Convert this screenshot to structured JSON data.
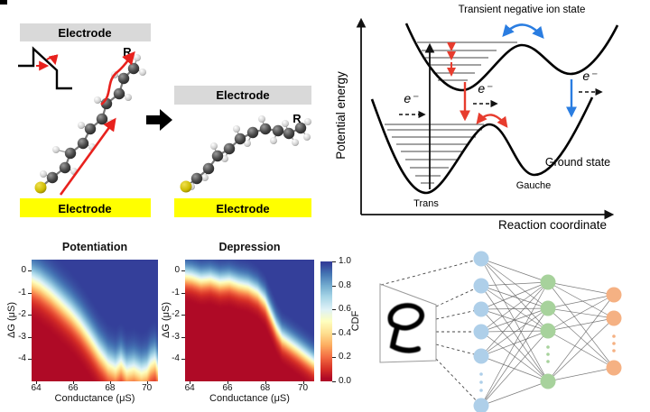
{
  "molecular_panel": {
    "electrode_top_left": "Electrode",
    "electrode_bottom_left": "Electrode",
    "electrode_top_right": "Electrode",
    "electrode_bottom_right": "Electrode",
    "r_label_left": "R",
    "r_label_right": "R",
    "colors": {
      "electrode_gray": "#d9d9d9",
      "electrode_yellow": "#ffff00",
      "arrow_red": "#e8211d",
      "sulfur_yellow": "#cdbb00"
    }
  },
  "energy_panel": {
    "title": "Transient negative ion state",
    "ylabel": "Potential energy",
    "xlabel": "Reaction coordinate",
    "trans": "Trans",
    "gauche": "Gauche",
    "ground_state": "Ground state",
    "electron": "e⁻",
    "colors": {
      "excitation_red": "#e73c2e",
      "relaxation_blue": "#2a7de1"
    }
  },
  "chart_data": [
    {
      "type": "heatmap",
      "title": "Potentiation",
      "xlabel": "Conductance (μS)",
      "ylabel": "ΔG (μS)",
      "xticks": [
        64,
        66,
        68,
        70
      ],
      "yticks": [
        0,
        -1,
        -2,
        -3,
        -4
      ],
      "xlim": [
        63.75,
        70.6
      ],
      "ylim": [
        -5.0,
        0.49
      ],
      "value_name": "CDF",
      "cdf_boundary": {
        "conductance": [
          63.75,
          64.2,
          64.8,
          65.3,
          65.9,
          66.4,
          66.9,
          67.4,
          67.9,
          68.3,
          68.6,
          68.9,
          69.3,
          69.7,
          70.0,
          70.2,
          70.45,
          70.6
        ],
        "delta_g": [
          -0.45,
          -0.65,
          -1.05,
          -1.45,
          -1.95,
          -2.45,
          -3.05,
          -3.7,
          -4.25,
          -4.45,
          -4.2,
          -4.55,
          -4.45,
          -4.65,
          -4.55,
          -4.25,
          -4.1,
          -4.5
        ]
      },
      "transition_width": 0.45
    },
    {
      "type": "heatmap",
      "title": "Depression",
      "xlabel": "Conductance (μS)",
      "ylabel": "ΔG (μS)",
      "xticks": [
        64,
        66,
        68,
        70
      ],
      "yticks": [
        0,
        -1,
        -2,
        -3,
        -4
      ],
      "xlim": [
        63.75,
        70.6
      ],
      "ylim": [
        -5.0,
        0.49
      ],
      "value_name": "CDF",
      "cdf_boundary": {
        "conductance": [
          63.75,
          64.1,
          64.6,
          65.1,
          65.6,
          66.1,
          66.6,
          67.1,
          67.6,
          68.0,
          68.3,
          68.6,
          68.9,
          69.3,
          69.7,
          70.0,
          70.3,
          70.6
        ],
        "delta_g": [
          -0.25,
          -0.3,
          -0.45,
          -0.4,
          -0.55,
          -0.5,
          -0.65,
          -0.75,
          -1.0,
          -1.4,
          -2.0,
          -2.6,
          -3.05,
          -3.3,
          -3.55,
          -3.75,
          -3.95,
          -4.15
        ]
      },
      "transition_width": 0.3
    },
    {
      "type": "colorbar",
      "label": "CDF",
      "ticks": [
        1.0,
        0.8,
        0.6,
        0.4,
        0.2,
        0.0
      ],
      "colormap": "RdYlBu",
      "stops": [
        [
          0.0,
          "#a50026"
        ],
        [
          0.1,
          "#d73027"
        ],
        [
          0.2,
          "#f46d43"
        ],
        [
          0.3,
          "#fdae61"
        ],
        [
          0.4,
          "#fee090"
        ],
        [
          0.5,
          "#ffffbf"
        ],
        [
          0.6,
          "#e0f3f8"
        ],
        [
          0.7,
          "#abd9e9"
        ],
        [
          0.8,
          "#74add1"
        ],
        [
          0.9,
          "#4575b4"
        ],
        [
          1.0,
          "#313695"
        ]
      ]
    }
  ],
  "nn_panel": {
    "layers": [
      {
        "name": "input",
        "count": 6,
        "color": "#aecfe9"
      },
      {
        "name": "hidden",
        "count": 4,
        "color": "#a7d29c"
      },
      {
        "name": "output",
        "count": 3,
        "color": "#f5b183"
      }
    ],
    "edge_color": "#5a5a5a"
  }
}
